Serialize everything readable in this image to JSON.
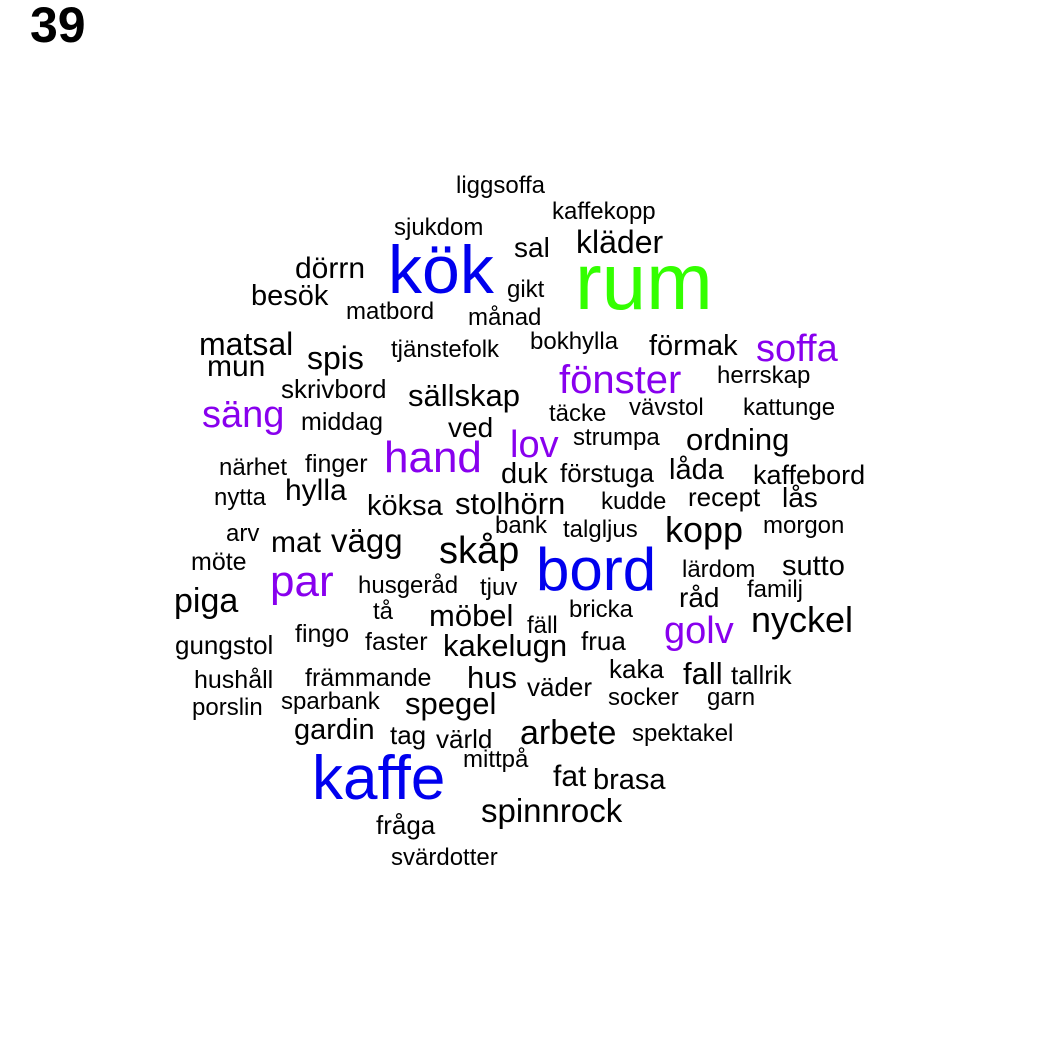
{
  "page_number": "39",
  "colors": {
    "top": "#33ff00",
    "high": "#0000ee",
    "mid": "#8800ee",
    "low": "#000000"
  },
  "words": [
    {
      "text": "rum",
      "tier": "top"
    },
    {
      "text": "kök",
      "tier": "high"
    },
    {
      "text": "kaffe",
      "tier": "high"
    },
    {
      "text": "bord",
      "tier": "high"
    },
    {
      "text": "soffa",
      "tier": "mid"
    },
    {
      "text": "fönster",
      "tier": "mid"
    },
    {
      "text": "säng",
      "tier": "mid"
    },
    {
      "text": "lov",
      "tier": "mid"
    },
    {
      "text": "hand",
      "tier": "mid"
    },
    {
      "text": "par",
      "tier": "mid"
    },
    {
      "text": "golv",
      "tier": "mid"
    },
    {
      "text": "liggsoffa",
      "tier": "low"
    },
    {
      "text": "kaffekopp",
      "tier": "low"
    },
    {
      "text": "sjukdom",
      "tier": "low"
    },
    {
      "text": "sal",
      "tier": "low"
    },
    {
      "text": "kläder",
      "tier": "low"
    },
    {
      "text": "dörrn",
      "tier": "low"
    },
    {
      "text": "gikt",
      "tier": "low"
    },
    {
      "text": "besök",
      "tier": "low"
    },
    {
      "text": "matbord",
      "tier": "low"
    },
    {
      "text": "månad",
      "tier": "low"
    },
    {
      "text": "matsal",
      "tier": "low"
    },
    {
      "text": "bokhylla",
      "tier": "low"
    },
    {
      "text": "förmak",
      "tier": "low"
    },
    {
      "text": "mun",
      "tier": "low"
    },
    {
      "text": "spis",
      "tier": "low"
    },
    {
      "text": "tjänstefolk",
      "tier": "low"
    },
    {
      "text": "herrskap",
      "tier": "low"
    },
    {
      "text": "skrivbord",
      "tier": "low"
    },
    {
      "text": "sällskap",
      "tier": "low"
    },
    {
      "text": "vävstol",
      "tier": "low"
    },
    {
      "text": "kattunge",
      "tier": "low"
    },
    {
      "text": "täcke",
      "tier": "low"
    },
    {
      "text": "middag",
      "tier": "low"
    },
    {
      "text": "ved",
      "tier": "low"
    },
    {
      "text": "strumpa",
      "tier": "low"
    },
    {
      "text": "ordning",
      "tier": "low"
    },
    {
      "text": "närhet",
      "tier": "low"
    },
    {
      "text": "finger",
      "tier": "low"
    },
    {
      "text": "duk",
      "tier": "low"
    },
    {
      "text": "förstuga",
      "tier": "low"
    },
    {
      "text": "låda",
      "tier": "low"
    },
    {
      "text": "kaffebord",
      "tier": "low"
    },
    {
      "text": "nytta",
      "tier": "low"
    },
    {
      "text": "hylla",
      "tier": "low"
    },
    {
      "text": "köksa",
      "tier": "low"
    },
    {
      "text": "stolhörn",
      "tier": "low"
    },
    {
      "text": "kudde",
      "tier": "low"
    },
    {
      "text": "recept",
      "tier": "low"
    },
    {
      "text": "lås",
      "tier": "low"
    },
    {
      "text": "arv",
      "tier": "low"
    },
    {
      "text": "bank",
      "tier": "low"
    },
    {
      "text": "talgljus",
      "tier": "low"
    },
    {
      "text": "kopp",
      "tier": "low"
    },
    {
      "text": "morgon",
      "tier": "low"
    },
    {
      "text": "mat",
      "tier": "low"
    },
    {
      "text": "vägg",
      "tier": "low"
    },
    {
      "text": "skåp",
      "tier": "low"
    },
    {
      "text": "möte",
      "tier": "low"
    },
    {
      "text": "lärdom",
      "tier": "low"
    },
    {
      "text": "sutto",
      "tier": "low"
    },
    {
      "text": "husgeråd",
      "tier": "low"
    },
    {
      "text": "tjuv",
      "tier": "low"
    },
    {
      "text": "familj",
      "tier": "low"
    },
    {
      "text": "piga",
      "tier": "low"
    },
    {
      "text": "råd",
      "tier": "low"
    },
    {
      "text": "tå",
      "tier": "low"
    },
    {
      "text": "möbel",
      "tier": "low"
    },
    {
      "text": "bricka",
      "tier": "low"
    },
    {
      "text": "nyckel",
      "tier": "low"
    },
    {
      "text": "fäll",
      "tier": "low"
    },
    {
      "text": "fingo",
      "tier": "low"
    },
    {
      "text": "faster",
      "tier": "low"
    },
    {
      "text": "gungstol",
      "tier": "low"
    },
    {
      "text": "kakelugn",
      "tier": "low"
    },
    {
      "text": "frua",
      "tier": "low"
    },
    {
      "text": "kaka",
      "tier": "low"
    },
    {
      "text": "fall",
      "tier": "low"
    },
    {
      "text": "tallrik",
      "tier": "low"
    },
    {
      "text": "hushåll",
      "tier": "low"
    },
    {
      "text": "främmande",
      "tier": "low"
    },
    {
      "text": "hus",
      "tier": "low"
    },
    {
      "text": "väder",
      "tier": "low"
    },
    {
      "text": "socker",
      "tier": "low"
    },
    {
      "text": "garn",
      "tier": "low"
    },
    {
      "text": "porslin",
      "tier": "low"
    },
    {
      "text": "sparbank",
      "tier": "low"
    },
    {
      "text": "spegel",
      "tier": "low"
    },
    {
      "text": "gardin",
      "tier": "low"
    },
    {
      "text": "tag",
      "tier": "low"
    },
    {
      "text": "värld",
      "tier": "low"
    },
    {
      "text": "arbete",
      "tier": "low"
    },
    {
      "text": "spektakel",
      "tier": "low"
    },
    {
      "text": "mittpå",
      "tier": "low"
    },
    {
      "text": "fat",
      "tier": "low"
    },
    {
      "text": "brasa",
      "tier": "low"
    },
    {
      "text": "spinnrock",
      "tier": "low"
    },
    {
      "text": "fråga",
      "tier": "low"
    },
    {
      "text": "svärdotter",
      "tier": "low"
    }
  ]
}
